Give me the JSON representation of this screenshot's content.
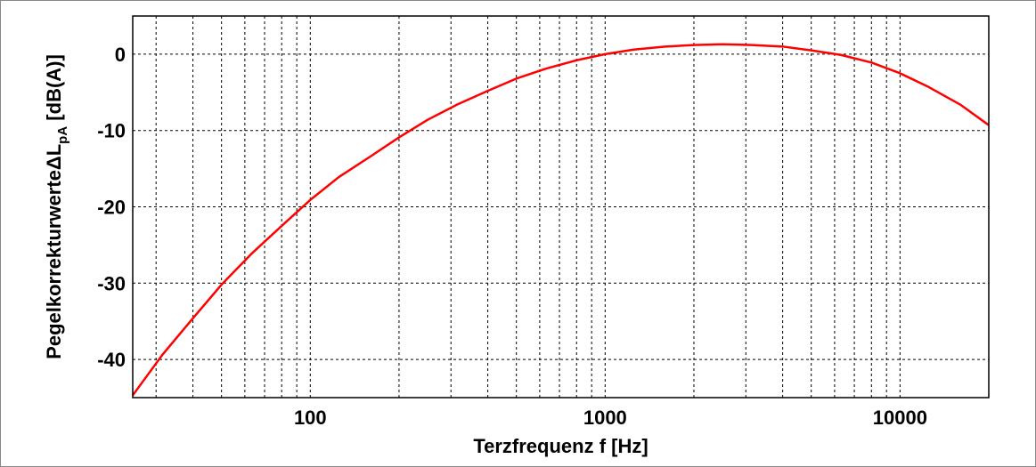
{
  "chart_data": {
    "type": "line",
    "title": "",
    "xlabel": "Terzfrequenz f [Hz]",
    "ylabel": {
      "prefix": "Pegelkorrekturwerte",
      "symbol": "ΔL",
      "subscript": "pA",
      "suffix": " [dB(A)]"
    },
    "x_scale": "log",
    "xlim": [
      25,
      20000
    ],
    "ylim": [
      -45,
      5
    ],
    "grid": true,
    "x_ticks": [
      100,
      1000,
      10000
    ],
    "x_tick_labels": [
      "100",
      "1000",
      "10000"
    ],
    "y_ticks": [
      0,
      -10,
      -20,
      -30,
      -40
    ],
    "y_tick_labels": [
      "0",
      "-10",
      "-20",
      "-30",
      "-40"
    ],
    "series": [
      {
        "color": "#ff0000",
        "x": [
          25,
          31.5,
          40,
          50,
          63,
          80,
          100,
          125,
          160,
          200,
          250,
          315,
          400,
          500,
          630,
          800,
          1000,
          1250,
          1600,
          2000,
          2500,
          3150,
          4000,
          5000,
          6300,
          8000,
          10000,
          12500,
          16000,
          20000
        ],
        "y": [
          -44.7,
          -39.4,
          -34.6,
          -30.2,
          -26.2,
          -22.5,
          -19.1,
          -16.1,
          -13.4,
          -10.9,
          -8.6,
          -6.6,
          -4.8,
          -3.2,
          -1.9,
          -0.8,
          0.0,
          0.6,
          1.0,
          1.2,
          1.3,
          1.2,
          1.0,
          0.5,
          -0.1,
          -1.1,
          -2.5,
          -4.3,
          -6.6,
          -9.3
        ]
      }
    ]
  }
}
